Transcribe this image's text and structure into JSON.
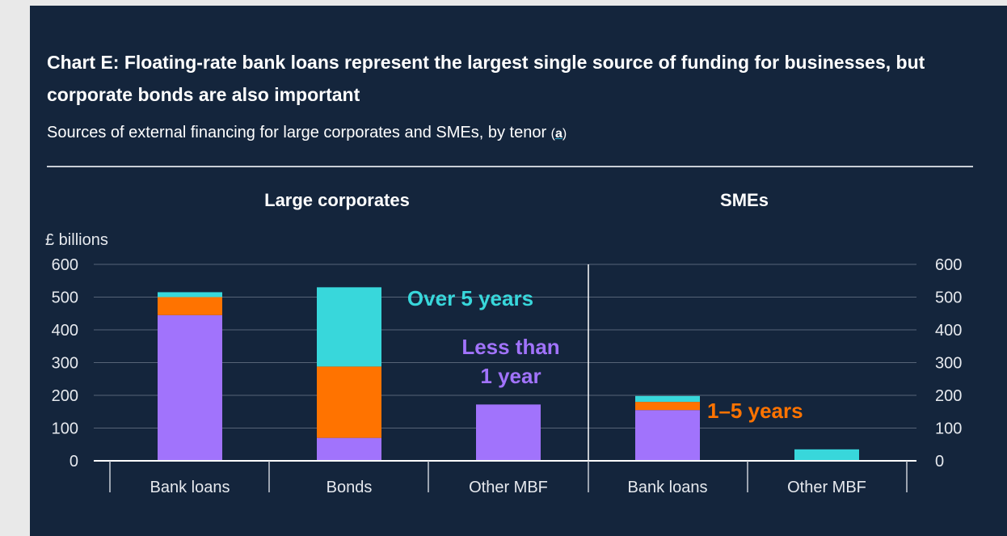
{
  "header": {
    "title": "Chart E: Floating-rate bank loans represent the largest single source of funding for businesses, but corporate bonds are also important",
    "subtitle": "Sources of external financing for large corporates and SMEs, by tenor",
    "footnote_open": "(",
    "footnote_label": "a",
    "footnote_close": ")"
  },
  "colors": {
    "background": "#14253c",
    "less_than_1_year": "#a173fc",
    "one_to_five_years": "#ff7300",
    "over_5_years": "#38d7db",
    "grid": "#566477",
    "axis_text": "#e6e9ee"
  },
  "chart_data": {
    "type": "bar",
    "stacked": true,
    "ylabel": "£ billions",
    "ylim": [
      0,
      600
    ],
    "yticks": [
      0,
      100,
      200,
      300,
      400,
      500,
      600
    ],
    "grid": true,
    "panels": [
      {
        "title": "Large corporates",
        "categories": [
          "Bank loans",
          "Bonds",
          "Other MBF"
        ]
      },
      {
        "title": "SMEs",
        "categories": [
          "Bank loans",
          "Other MBF"
        ]
      }
    ],
    "categories": [
      "Bank loans",
      "Bonds",
      "Other MBF",
      "Bank loans",
      "Other MBF"
    ],
    "series": [
      {
        "name": "Less than 1 year",
        "label_lines": [
          "Less than",
          "1 year"
        ],
        "color": "#a173fc",
        "values": [
          445,
          70,
          172,
          155,
          0
        ]
      },
      {
        "name": "1–5 years",
        "label_lines": [
          "1–5 years"
        ],
        "color": "#ff7300",
        "values": [
          55,
          218,
          0,
          25,
          0
        ]
      },
      {
        "name": "Over 5 years",
        "label_lines": [
          "Over 5 years"
        ],
        "color": "#38d7db",
        "values": [
          15,
          242,
          0,
          18,
          35
        ]
      }
    ]
  }
}
